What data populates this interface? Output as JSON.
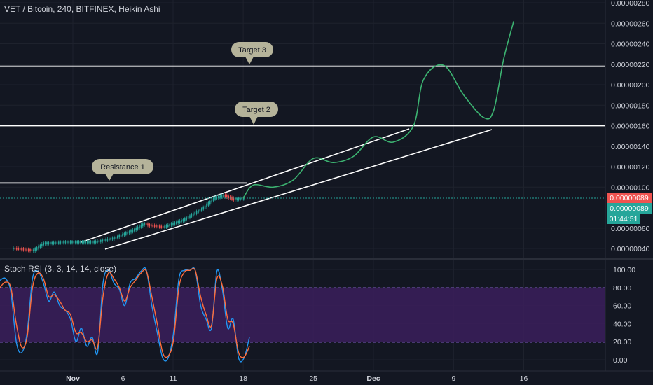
{
  "header": {
    "title": "VET / Bitcoin, 240, BITFINEX, Heikin Ashi"
  },
  "indicator": {
    "title": "Stoch RSI (3, 3, 14, 14, close)"
  },
  "colors": {
    "background": "#131722",
    "grid": "#1e222d",
    "text": "#d1d4dc",
    "candle_up": "#26a69a",
    "candle_down": "#ef5350",
    "projection": "#3cb371",
    "annotation_fill": "#b5b39a",
    "rsi_band": "#3b1f5c",
    "rsi_k": "#2196f3",
    "rsi_d": "#ff6d3b",
    "last_price_bg": "#26a69a"
  },
  "price_axis": {
    "ticks": [
      "0.00000280",
      "0.00000260",
      "0.00000240",
      "0.00000220",
      "0.00000200",
      "0.00000180",
      "0.00000160",
      "0.00000140",
      "0.00000120",
      "0.00000100",
      "0.00000060",
      "0.00000040"
    ],
    "last_price_label_1": "0.00000089",
    "last_price_label_2": "0.00000089",
    "countdown": "01:44:51"
  },
  "rsi_axis": {
    "ticks": [
      "100.00",
      "80.00",
      "60.00",
      "40.00",
      "20.00",
      "0.00"
    ]
  },
  "time_axis": {
    "ticks": [
      "Nov",
      "6",
      "11",
      "18",
      "25",
      "Dec",
      "9",
      "16"
    ]
  },
  "annotations": [
    {
      "label": "Target 3"
    },
    {
      "label": "Target 2"
    },
    {
      "label": "Resistance 1"
    }
  ],
  "chart_data": [
    {
      "type": "candlestick",
      "title": "VET / Bitcoin, 240, BITFINEX, Heikin Ashi",
      "y_range": [
        3e-07,
        2.8e-06
      ],
      "x_range": [
        "Oct 26",
        "Dec 20"
      ],
      "last_price": 8.9e-07,
      "horizontal_levels": [
        {
          "label": "Resistance 1",
          "value": 1.04e-06
        },
        {
          "label": "Target 2",
          "value": 1.6e-06
        },
        {
          "label": "Target 3",
          "value": 2.18e-06
        }
      ],
      "price_path": [
        {
          "x": "Oct 26",
          "y": 4e-07
        },
        {
          "x": "Oct 28",
          "y": 3.8e-07
        },
        {
          "x": "Oct 29",
          "y": 4.5e-07
        },
        {
          "x": "Oct 31",
          "y": 4.6e-07
        },
        {
          "x": "Nov 2",
          "y": 4.6e-07
        },
        {
          "x": "Nov 3",
          "y": 4.6e-07
        },
        {
          "x": "Nov 5",
          "y": 5e-07
        },
        {
          "x": "Nov 7",
          "y": 5.8e-07
        },
        {
          "x": "Nov 8",
          "y": 6.4e-07
        },
        {
          "x": "Nov 9",
          "y": 6.2e-07
        },
        {
          "x": "Nov 10",
          "y": 6.1e-07
        },
        {
          "x": "Nov 12",
          "y": 6.8e-07
        },
        {
          "x": "Nov 14",
          "y": 8e-07
        },
        {
          "x": "Nov 15",
          "y": 8.9e-07
        },
        {
          "x": "Nov 16",
          "y": 9.2e-07
        },
        {
          "x": "Nov 17",
          "y": 8.8e-07
        },
        {
          "x": "Nov 18",
          "y": 8.9e-07
        }
      ],
      "projection_path": [
        {
          "x": "Nov 18",
          "y": 8.9e-07
        },
        {
          "x": "Nov 19",
          "y": 1.02e-06
        },
        {
          "x": "Nov 21",
          "y": 1e-06
        },
        {
          "x": "Nov 23",
          "y": 1.07e-06
        },
        {
          "x": "Nov 25",
          "y": 1.28e-06
        },
        {
          "x": "Nov 27",
          "y": 1.24e-06
        },
        {
          "x": "Nov 29",
          "y": 1.3e-06
        },
        {
          "x": "Dec 1",
          "y": 1.49e-06
        },
        {
          "x": "Dec 3",
          "y": 1.44e-06
        },
        {
          "x": "Dec 5",
          "y": 1.6e-06
        },
        {
          "x": "Dec 6",
          "y": 2.05e-06
        },
        {
          "x": "Dec 8",
          "y": 2.19e-06
        },
        {
          "x": "Dec 10",
          "y": 1.9e-06
        },
        {
          "x": "Dec 12",
          "y": 1.68e-06
        },
        {
          "x": "Dec 13",
          "y": 1.75e-06
        },
        {
          "x": "Dec 14",
          "y": 2.25e-06
        },
        {
          "x": "Dec 15",
          "y": 2.62e-06
        }
      ]
    },
    {
      "type": "line",
      "title": "Stoch RSI (3, 3, 14, 14, close)",
      "y_range": [
        0,
        100
      ],
      "bands": [
        20,
        80
      ],
      "series": [
        {
          "values": [
            88,
            90,
            75,
            20,
            8,
            30,
            90,
            98,
            85,
            65,
            75,
            60,
            55,
            45,
            20,
            35,
            15,
            25,
            8,
            85,
            99,
            85,
            78,
            60,
            85,
            90,
            98,
            99,
            60,
            30,
            2,
            2,
            30,
            90,
            99,
            99,
            99,
            60,
            45,
            35,
            98,
            78,
            35,
            45,
            2,
            2,
            25
          ]
        },
        {
          "values": [
            80,
            86,
            80,
            40,
            14,
            25,
            80,
            96,
            90,
            70,
            72,
            65,
            55,
            50,
            30,
            30,
            20,
            22,
            14,
            70,
            96,
            90,
            80,
            65,
            80,
            88,
            96,
            98,
            70,
            40,
            8,
            4,
            22,
            80,
            97,
            99,
            99,
            70,
            50,
            38,
            90,
            82,
            45,
            40,
            8,
            3,
            15
          ]
        }
      ]
    }
  ]
}
